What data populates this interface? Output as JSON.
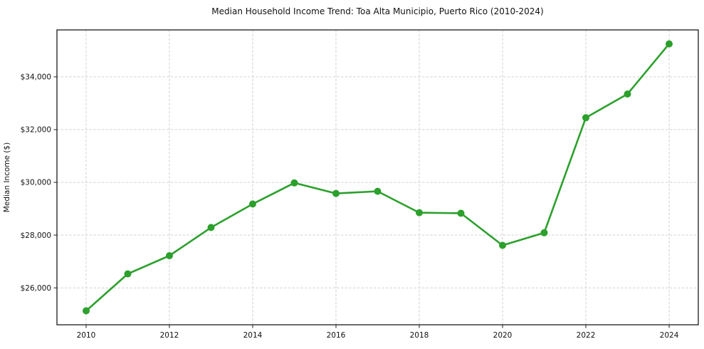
{
  "figure": {
    "title": "Median Household Income Trend: Toa Alta Municipio, Puerto Rico (2010-2024)",
    "ylabel": "Median Income ($)"
  },
  "chart_data": {
    "type": "line",
    "title": "Median Household Income Trend: Toa Alta Municipio, Puerto Rico (2010-2024)",
    "xlabel": "",
    "ylabel": "Median Income ($)",
    "series_name": "Median household income",
    "x": [
      2010,
      2011,
      2012,
      2013,
      2014,
      2015,
      2016,
      2017,
      2018,
      2019,
      2020,
      2021,
      2022,
      2023,
      2024
    ],
    "values": [
      25130,
      26530,
      27220,
      28290,
      29180,
      29980,
      29580,
      29660,
      28850,
      28830,
      27610,
      28090,
      32450,
      33350,
      35250
    ],
    "line_color": "#2ca02c",
    "marker": "circle",
    "marker_radius": 5,
    "grid": true,
    "grid_style": "dashed",
    "legend": "none",
    "xlim": [
      2009.3,
      2024.7
    ],
    "ylim": [
      24600,
      35780
    ],
    "xticks": [
      {
        "value": 2010,
        "label": "2010"
      },
      {
        "value": 2012,
        "label": "2012"
      },
      {
        "value": 2014,
        "label": "2014"
      },
      {
        "value": 2016,
        "label": "2016"
      },
      {
        "value": 2018,
        "label": "2018"
      },
      {
        "value": 2020,
        "label": "2020"
      },
      {
        "value": 2022,
        "label": "2022"
      },
      {
        "value": 2024,
        "label": "2024"
      }
    ],
    "yticks": [
      {
        "value": 26000,
        "label": "$26,000"
      },
      {
        "value": 28000,
        "label": "$28,000"
      },
      {
        "value": 30000,
        "label": "$30,000"
      },
      {
        "value": 32000,
        "label": "$32,000"
      },
      {
        "value": 34000,
        "label": "$34,000"
      }
    ]
  }
}
